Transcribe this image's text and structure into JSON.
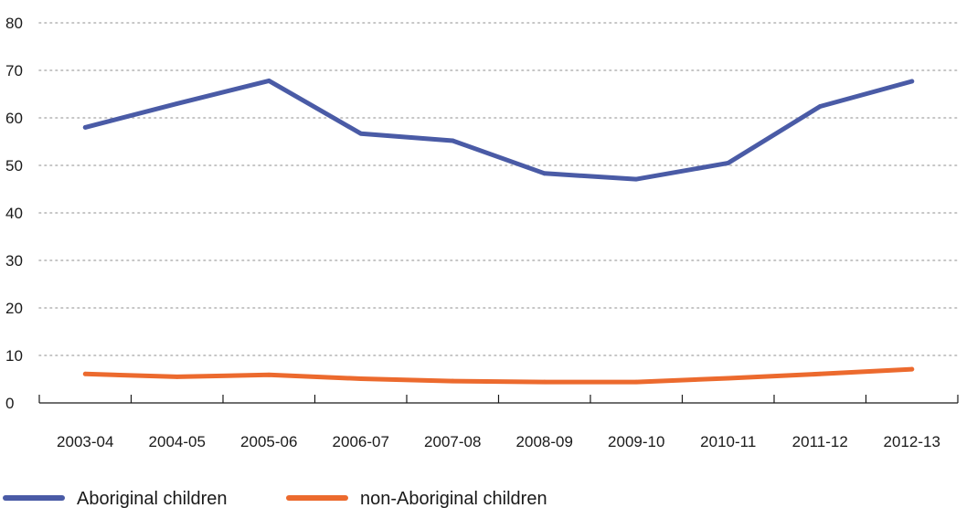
{
  "chart_data": {
    "type": "line",
    "title": "",
    "xlabel": "",
    "ylabel": "",
    "ylim": [
      0,
      80
    ],
    "yticks": [
      0,
      10,
      20,
      30,
      40,
      50,
      60,
      70,
      80
    ],
    "grid": true,
    "legend_position": "bottom-left",
    "categories": [
      "2003-04",
      "2004-05",
      "2005-06",
      "2006-07",
      "2007-08",
      "2008-09",
      "2009-10",
      "2010-11",
      "2011-12",
      "2012-13"
    ],
    "series": [
      {
        "name": "Aboriginal children",
        "color": "#4a5ba6",
        "values": [
          58.0,
          63.0,
          67.8,
          56.7,
          55.2,
          48.3,
          47.1,
          50.5,
          62.4,
          67.7
        ]
      },
      {
        "name": "non-Aboriginal children",
        "color": "#ec6a2e",
        "values": [
          6.1,
          5.5,
          5.9,
          5.1,
          4.6,
          4.4,
          4.4,
          5.2,
          6.1,
          7.1
        ]
      }
    ]
  }
}
